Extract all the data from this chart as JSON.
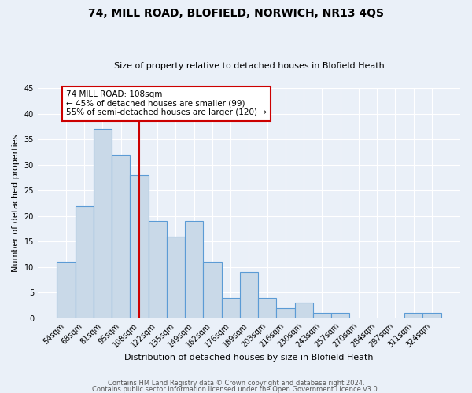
{
  "title": "74, MILL ROAD, BLOFIELD, NORWICH, NR13 4QS",
  "subtitle": "Size of property relative to detached houses in Blofield Heath",
  "xlabel": "Distribution of detached houses by size in Blofield Heath",
  "ylabel": "Number of detached properties",
  "bar_color": "#c9d9e8",
  "bar_edge_color": "#5b9bd5",
  "categories": [
    "54sqm",
    "68sqm",
    "81sqm",
    "95sqm",
    "108sqm",
    "122sqm",
    "135sqm",
    "149sqm",
    "162sqm",
    "176sqm",
    "189sqm",
    "203sqm",
    "216sqm",
    "230sqm",
    "243sqm",
    "257sqm",
    "270sqm",
    "284sqm",
    "297sqm",
    "311sqm",
    "324sqm"
  ],
  "values": [
    11,
    22,
    37,
    32,
    28,
    19,
    16,
    19,
    11,
    4,
    9,
    4,
    2,
    3,
    1,
    1,
    0,
    0,
    0,
    1,
    1
  ],
  "ylim": [
    0,
    45
  ],
  "yticks": [
    0,
    5,
    10,
    15,
    20,
    25,
    30,
    35,
    40,
    45
  ],
  "vline_x_index": 4,
  "vline_color": "#cc0000",
  "annotation_text": "74 MILL ROAD: 108sqm\n← 45% of detached houses are smaller (99)\n55% of semi-detached houses are larger (120) →",
  "annotation_box_color": "white",
  "annotation_box_edge_color": "#cc0000",
  "footer1": "Contains HM Land Registry data © Crown copyright and database right 2024.",
  "footer2": "Contains public sector information licensed under the Open Government Licence v3.0.",
  "background_color": "#eaf0f8",
  "grid_color": "white",
  "title_fontsize": 10,
  "subtitle_fontsize": 8,
  "ylabel_fontsize": 8,
  "xlabel_fontsize": 8,
  "tick_fontsize": 7,
  "footer_fontsize": 6
}
